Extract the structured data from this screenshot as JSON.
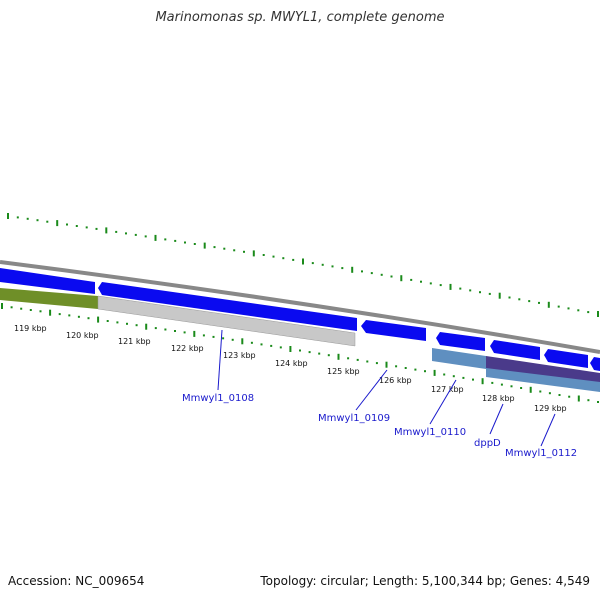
{
  "title": "Marinomonas sp. MWYL1, complete genome",
  "accession": "Accession: NC_009654",
  "summary": "Topology: circular; Length: 5,100,344 bp; Genes: 4,549",
  "kbp_ticks": [
    "119 kbp",
    "120 kbp",
    "121 kbp",
    "122 kbp",
    "123 kbp",
    "124 kbp",
    "125 kbp",
    "126 kbp",
    "127 kbp",
    "128 kbp",
    "129 kbp"
  ],
  "gene_labels": [
    "Mmwyl1_0108",
    "Mmwyl1_0109",
    "Mmwyl1_0110",
    "dppD",
    "Mmwyl1_0112"
  ],
  "colors": {
    "gene_blue": "#0a0af0",
    "tick_green": "#1a8a1a",
    "backbone_grey": "#888888",
    "olive_feature": "#6f8f28",
    "light_grey_feature": "#c8c8c8",
    "steel_blue_feature": "#5f8fc0",
    "purple_feature": "#4a3a8a"
  }
}
